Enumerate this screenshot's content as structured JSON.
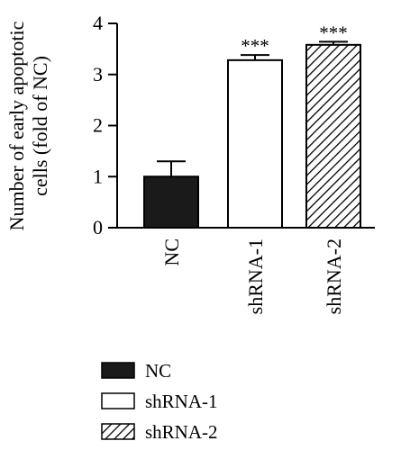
{
  "chart_data": {
    "type": "bar",
    "categories": [
      "NC",
      "shRNA-1",
      "shRNA-2"
    ],
    "values": [
      1.0,
      3.28,
      3.58
    ],
    "errors": [
      0.3,
      0.1,
      0.06
    ],
    "significance": [
      "",
      "***",
      "***"
    ],
    "ylabel_lines": [
      "Number of early apoptotic",
      "cells (fold of NC)"
    ],
    "ylim": [
      0,
      4
    ],
    "yticks": [
      0,
      1,
      2,
      3,
      4
    ],
    "grid": false,
    "legend": {
      "placement": "bottom-left",
      "entries": [
        {
          "label": "NC",
          "fill": "solid-black"
        },
        {
          "label": "shRNA-1",
          "fill": "white"
        },
        {
          "label": "shRNA-2",
          "fill": "diagonal-hatch"
        }
      ]
    },
    "colors": {
      "axis": "#000000",
      "solid": "#1a1a1a",
      "open": "#ffffff",
      "hatch": "#000000"
    }
  }
}
